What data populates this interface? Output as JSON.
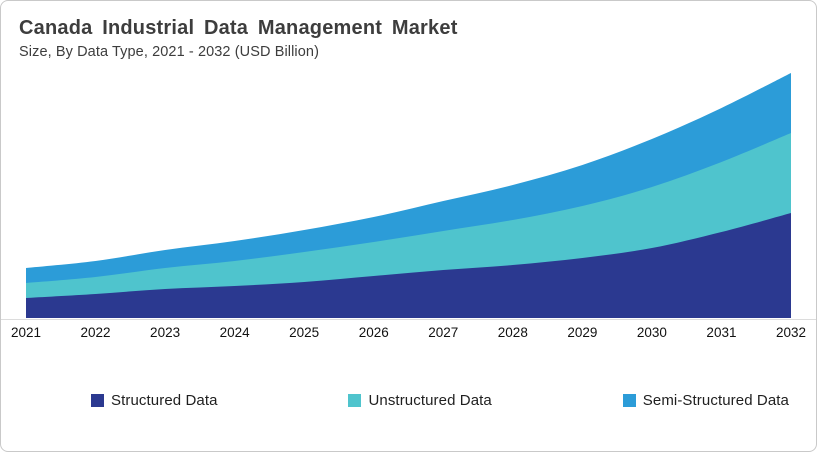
{
  "header": {
    "title": "Canada Industrial Data Management Market",
    "subtitle": "Size, By Data Type, 2021 - 2032 (USD Billion)"
  },
  "colors": {
    "structured": "#2b3990",
    "unstructured": "#4fc4cd",
    "semi_structured": "#2c9cd8",
    "title_text": "#3d3d3d",
    "axis_text": "#111111",
    "border": "#c9c9c9",
    "axis_line": "#dcdcdc",
    "background": "#ffffff"
  },
  "chart_data": {
    "type": "area",
    "stacked": true,
    "title": "Canada Industrial Data Management Market",
    "subtitle": "Size, By Data Type, 2021 - 2032 (USD Billion)",
    "xlabel": "",
    "ylabel": "USD Billion",
    "x": [
      2021,
      2022,
      2023,
      2024,
      2025,
      2026,
      2027,
      2028,
      2029,
      2030,
      2031,
      2032
    ],
    "series": [
      {
        "name": "Structured Data",
        "color": "#2b3990",
        "values": [
          1.0,
          1.2,
          1.45,
          1.6,
          1.8,
          2.1,
          2.4,
          2.65,
          3.0,
          3.5,
          4.3,
          5.25
        ]
      },
      {
        "name": "Unstructured Data",
        "color": "#4fc4cd",
        "values": [
          0.75,
          0.85,
          1.05,
          1.25,
          1.5,
          1.7,
          1.95,
          2.25,
          2.6,
          3.05,
          3.5,
          4.0
        ]
      },
      {
        "name": "Semi-Structured Data",
        "color": "#2c9cd8",
        "values": [
          0.75,
          0.8,
          0.9,
          1.0,
          1.1,
          1.25,
          1.5,
          1.75,
          2.05,
          2.4,
          2.7,
          3.0
        ]
      }
    ],
    "totals": [
      2.5,
      2.85,
      3.4,
      3.85,
      4.4,
      5.05,
      5.85,
      6.65,
      7.65,
      8.95,
      10.5,
      12.25
    ],
    "ylim": [
      0,
      13
    ],
    "grid": false,
    "legend_position": "bottom",
    "y_axis_shown": false
  },
  "x_axis": {
    "labels": [
      "2021",
      "2022",
      "2023",
      "2024",
      "2025",
      "2026",
      "2027",
      "2028",
      "2029",
      "2030",
      "2031",
      "2032"
    ]
  },
  "legend": {
    "items": [
      {
        "label": "Structured Data"
      },
      {
        "label": "Unstructured Data"
      },
      {
        "label": "Semi-Structured Data"
      }
    ]
  }
}
